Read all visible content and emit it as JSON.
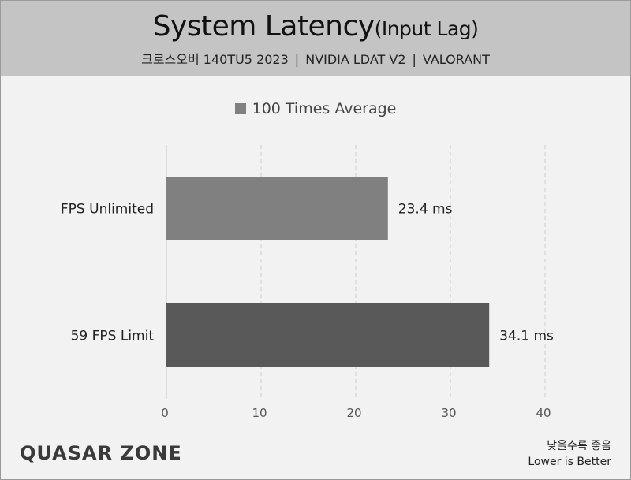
{
  "header": {
    "title": "System Latency",
    "title_suffix": "(Input Lag)",
    "subtitle_parts": [
      "크로스오버 140TU5 2023",
      "NVIDIA LDAT V2",
      "VALORANT"
    ],
    "separator": "|"
  },
  "logo": {
    "text": "QUASAR ZONE"
  },
  "note": {
    "line1": "낮을수록 좋음",
    "line2": "Lower is Better"
  },
  "chart_data": {
    "type": "bar",
    "orientation": "horizontal",
    "categories": [
      "FPS Unlimited",
      "59 FPS Limit"
    ],
    "series": [
      {
        "name": "100 Times Average",
        "values": [
          23.4,
          34.1
        ],
        "colors": [
          "#808080",
          "#595959"
        ]
      }
    ],
    "value_labels": [
      "23.4 ms",
      "34.1 ms"
    ],
    "xlim": [
      0,
      40
    ],
    "xticks": [
      0,
      10,
      20,
      30,
      40
    ],
    "grid": true,
    "legend_position": "top-center"
  }
}
